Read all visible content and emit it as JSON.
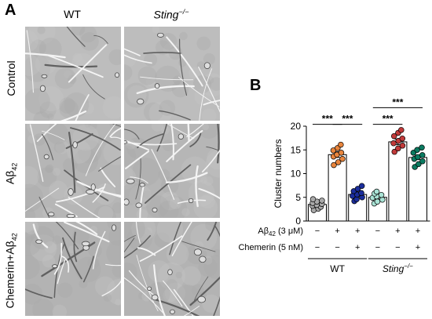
{
  "panel_a": {
    "letter": "A",
    "columns": [
      "WT",
      "Sting"
    ],
    "column_superscript": "−/−",
    "rows": [
      {
        "label": "Control",
        "sub": "",
        "suffix": ""
      },
      {
        "label": "Aβ",
        "sub": "42",
        "suffix": ""
      },
      {
        "label": "Chemerin+Aβ",
        "sub": "42",
        "suffix": ""
      }
    ]
  },
  "panel_b": {
    "letter": "B"
  },
  "chart_data": {
    "type": "bar",
    "ylabel": "Cluster numbers",
    "ylim": [
      0,
      20
    ],
    "yticks": [
      0,
      5,
      10,
      15,
      20
    ],
    "error_bars": "SEM",
    "groups": [
      {
        "label": "Control",
        "genotype": "WT",
        "abeta": "−",
        "chemerin": "−",
        "mean": 3.5,
        "sem": 0.35,
        "color": "#a9a9a9",
        "points": [
          2.3,
          2.6,
          3.0,
          3.2,
          3.4,
          3.6,
          3.8,
          4.1,
          4.3,
          4.6
        ]
      },
      {
        "label": "Aβ42",
        "genotype": "WT",
        "abeta": "+",
        "chemerin": "−",
        "mean": 14.0,
        "sem": 0.6,
        "color": "#e8853d",
        "points": [
          11.8,
          12.4,
          13.1,
          13.6,
          14.0,
          14.4,
          14.9,
          15.4,
          16.1
        ]
      },
      {
        "label": "Chemerin+Aβ42",
        "genotype": "WT",
        "abeta": "+",
        "chemerin": "+",
        "mean": 5.6,
        "sem": 0.45,
        "color": "#1b2e9c",
        "points": [
          4.2,
          4.6,
          5.0,
          5.3,
          5.6,
          5.9,
          6.3,
          6.8,
          7.4
        ]
      },
      {
        "label": "Control",
        "genotype": "Sting−/−",
        "abeta": "−",
        "chemerin": "−",
        "mean": 5.0,
        "sem": 0.35,
        "color": "#a9e3d5",
        "points": [
          3.7,
          4.1,
          4.5,
          4.9,
          5.2,
          5.5,
          5.8,
          6.2
        ]
      },
      {
        "label": "Aβ42",
        "genotype": "Sting−/−",
        "abeta": "+",
        "chemerin": "−",
        "mean": 16.7,
        "sem": 0.6,
        "color": "#c23a3a",
        "points": [
          14.6,
          15.3,
          15.9,
          16.4,
          16.9,
          17.4,
          17.9,
          18.6,
          19.2
        ]
      },
      {
        "label": "Chemerin+Aβ42",
        "genotype": "Sting−/−",
        "abeta": "+",
        "chemerin": "+",
        "mean": 13.4,
        "sem": 0.45,
        "color": "#0b7b61",
        "points": [
          11.4,
          12.0,
          12.6,
          13.1,
          13.5,
          13.9,
          14.4,
          15.0,
          15.5
        ]
      }
    ],
    "significance": [
      {
        "from": 0,
        "to": 1,
        "label": "***"
      },
      {
        "from": 1,
        "to": 2,
        "label": "***"
      },
      {
        "from": 3,
        "to": 4,
        "label": "***"
      },
      {
        "from": 3,
        "to": 5,
        "label": "***"
      }
    ],
    "condition_rows": [
      {
        "label": "Aβ42 (3 μM)",
        "label_main": "Aβ",
        "label_sub": "42",
        "label_rest": " (3 μM)",
        "key": "abeta"
      },
      {
        "label": "Chemerin (5 nM)",
        "label_main": "Chemerin (5 nM)",
        "label_sub": "",
        "label_rest": "",
        "key": "chemerin"
      }
    ],
    "genotype_groups": [
      {
        "label": "WT",
        "italic": false,
        "superscript": "",
        "from": 0,
        "to": 2
      },
      {
        "label": "Sting",
        "italic": true,
        "superscript": "−/−",
        "from": 3,
        "to": 5
      }
    ]
  }
}
